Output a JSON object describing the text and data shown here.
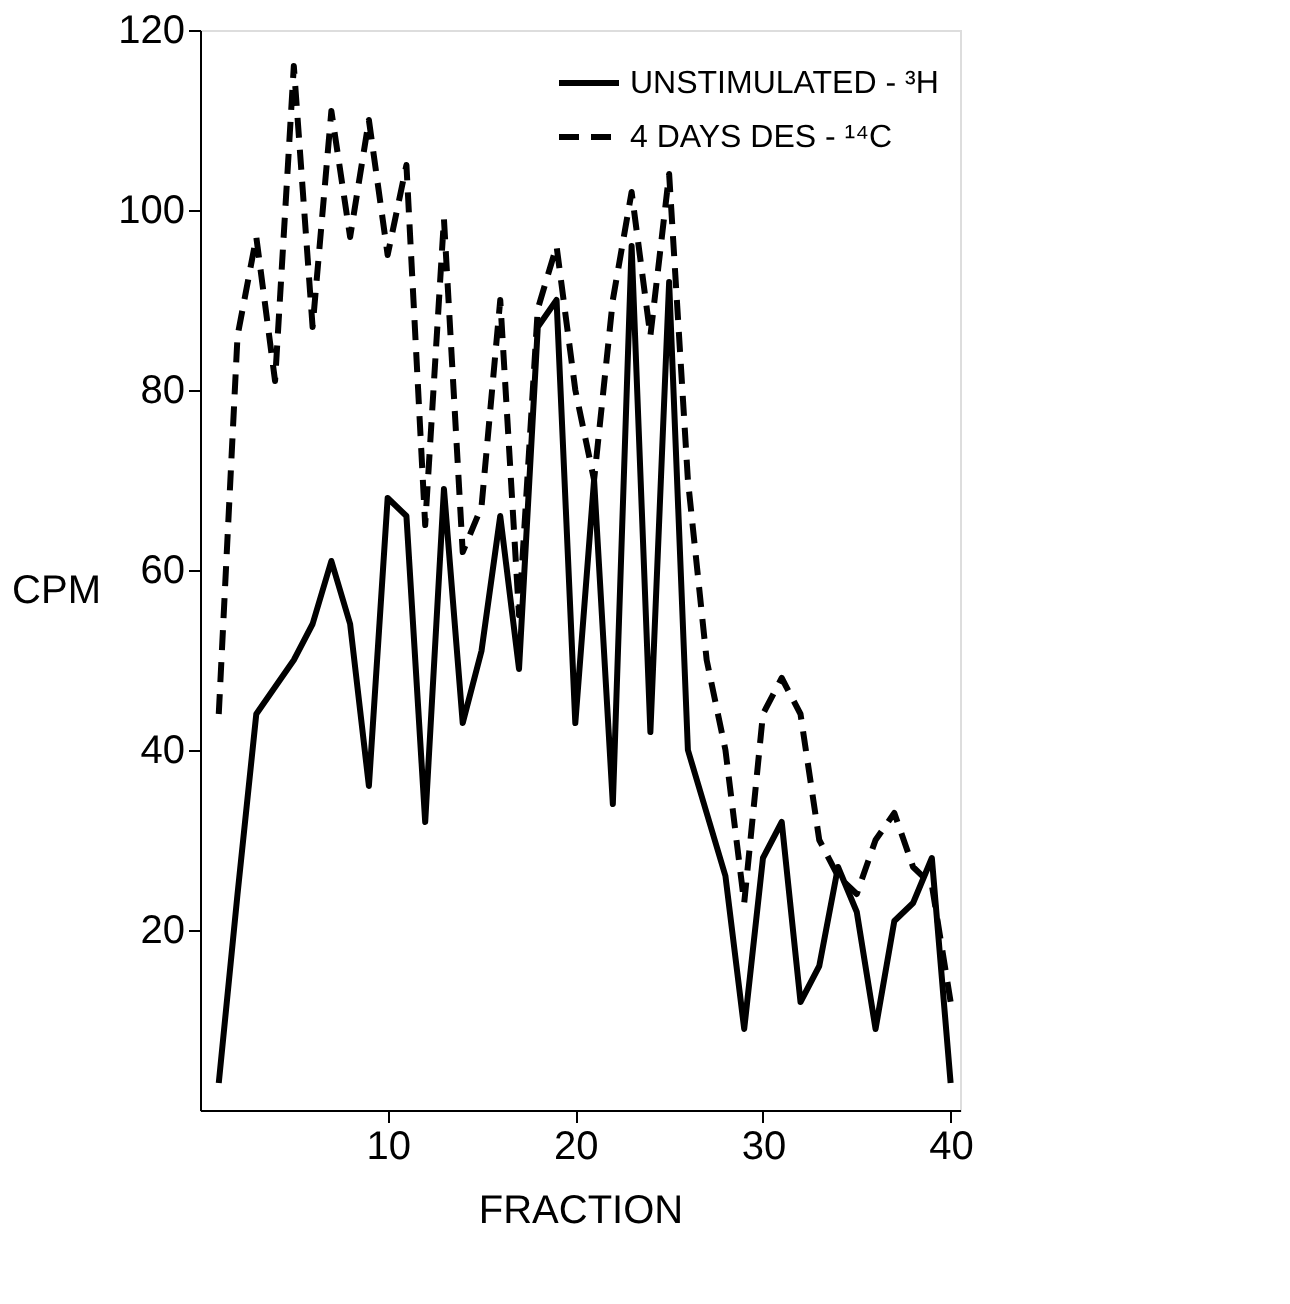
{
  "chart_data": {
    "type": "line",
    "xlabel": "FRACTION",
    "ylabel": "CPM",
    "x": [
      1,
      2,
      3,
      4,
      5,
      6,
      7,
      8,
      9,
      10,
      11,
      12,
      13,
      14,
      15,
      16,
      17,
      18,
      19,
      20,
      21,
      22,
      23,
      24,
      25,
      26,
      27,
      28,
      29,
      30,
      31,
      32,
      33,
      34,
      35,
      36,
      37,
      38,
      39,
      40
    ],
    "series": [
      {
        "name": "UNSTIMULATED - ³H",
        "color": "#000000",
        "line_style": "solid",
        "values": [
          3,
          24,
          44,
          47,
          50,
          54,
          61,
          54,
          36,
          68,
          66,
          32,
          69,
          43,
          51,
          66,
          49,
          87,
          90,
          43,
          70,
          34,
          96,
          42,
          92,
          40,
          33,
          26,
          9,
          28,
          32,
          12,
          16,
          27,
          22,
          9,
          21,
          23,
          28,
          3
        ]
      },
      {
        "name": "4 DAYS DES - ¹⁴C",
        "color": "#000000",
        "line_style": "dashed",
        "values": [
          44,
          86,
          97,
          81,
          116,
          87,
          111,
          97,
          110,
          95,
          105,
          65,
          99,
          62,
          67,
          90,
          55,
          89,
          96,
          80,
          70,
          90,
          102,
          86,
          104,
          70,
          50,
          40,
          23,
          44,
          48,
          44,
          30,
          26,
          24,
          30,
          33,
          27,
          25,
          12
        ]
      }
    ],
    "xlim": [
      0,
      40.5
    ],
    "xticks": [
      10,
      20,
      30,
      40
    ],
    "ylim": [
      0,
      120
    ],
    "yticks": [
      20,
      40,
      60,
      80,
      100,
      120
    ],
    "grid": false,
    "legend": "top right",
    "marker": "none"
  }
}
